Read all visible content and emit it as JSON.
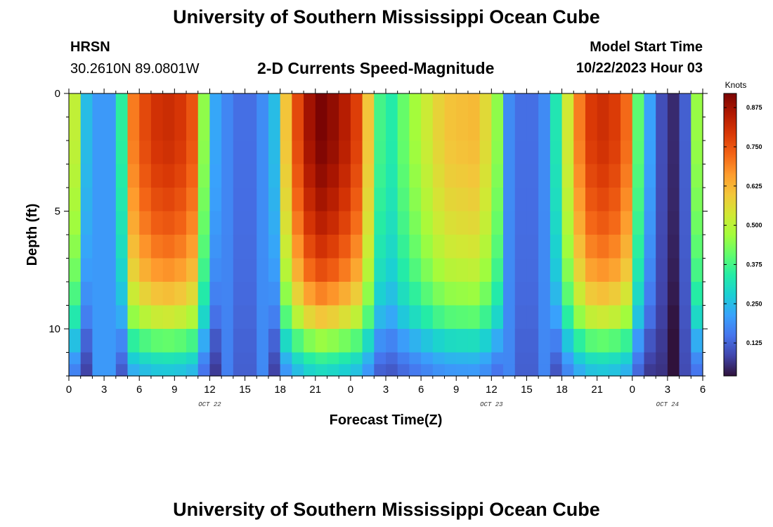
{
  "header": {
    "title": "University of Southern Mississippi Ocean Cube",
    "station": "HRSN",
    "coords": "30.2610N  89.0801W",
    "plot_title": "2-D Currents Speed-Magnitude",
    "model_label": "Model Start Time",
    "model_time": "10/22/2023 Hour 03"
  },
  "footer": {
    "title": "University of Southern Mississippi Ocean Cube"
  },
  "chart_data": {
    "type": "heatmap",
    "title": "2-D Currents Speed-Magnitude",
    "xlabel": "Forecast Time(Z)",
    "ylabel": "Depth (ft)",
    "x_hours": {
      "start": 0,
      "end": 54,
      "step": 3
    },
    "x_tick_labels": [
      "0",
      "3",
      "6",
      "9",
      "12",
      "15",
      "18",
      "21",
      "0",
      "3",
      "6",
      "9",
      "12",
      "15",
      "18",
      "21",
      "0",
      "3",
      "6"
    ],
    "date_labels": [
      {
        "text": "OCT 22",
        "hour": 12
      },
      {
        "text": "OCT 23",
        "hour": 36
      },
      {
        "text": "OCT 24",
        "hour": 51
      }
    ],
    "ylim": [
      0,
      12
    ],
    "y_reversed": true,
    "y_ticks": [
      0,
      5,
      10
    ],
    "y_tick_labels": [
      "0",
      "5",
      "10"
    ],
    "depth_levels_ft": [
      0,
      1,
      2,
      3,
      4,
      5,
      6,
      7,
      8,
      9,
      10,
      11,
      11.5,
      12
    ],
    "colorbar": {
      "units": "Knots",
      "min": 0.02,
      "max": 0.92,
      "ticks": [
        0.125,
        0.25,
        0.375,
        0.5,
        0.625,
        0.75,
        0.875
      ],
      "tick_labels": [
        "0.125",
        "0.250",
        "0.375",
        "0.500",
        "0.625",
        "0.750",
        "0.875"
      ],
      "colormap": [
        "#30123b",
        "#4145ab",
        "#4675ed",
        "#39a2fc",
        "#1bcfd4",
        "#24eca6",
        "#61fc6c",
        "#a4fc3b",
        "#d1e834",
        "#f3c63a",
        "#fe9b2d",
        "#f36315",
        "#d93806",
        "#b11901",
        "#7a0403"
      ]
    },
    "surface_speed_knots": [
      {
        "hour": 0,
        "v": 0.62
      },
      {
        "hour": 1,
        "v": 0.4
      },
      {
        "hour": 1.5,
        "v": 0.25
      },
      {
        "hour": 2,
        "v": 0.2
      },
      {
        "hour": 3.5,
        "v": 0.2
      },
      {
        "hour": 4.5,
        "v": 0.35
      },
      {
        "hour": 5.5,
        "v": 0.7
      },
      {
        "hour": 7,
        "v": 0.8
      },
      {
        "hour": 9,
        "v": 0.82
      },
      {
        "hour": 10.5,
        "v": 0.75
      },
      {
        "hour": 11.5,
        "v": 0.45
      },
      {
        "hour": 12.5,
        "v": 0.22
      },
      {
        "hour": 14,
        "v": 0.15
      },
      {
        "hour": 15,
        "v": 0.13
      },
      {
        "hour": 16,
        "v": 0.15
      },
      {
        "hour": 17.5,
        "v": 0.25
      },
      {
        "hour": 18.5,
        "v": 0.6
      },
      {
        "hour": 20,
        "v": 0.85
      },
      {
        "hour": 21.5,
        "v": 0.92
      },
      {
        "hour": 23,
        "v": 0.88
      },
      {
        "hour": 25,
        "v": 0.75
      },
      {
        "hour": 26,
        "v": 0.45
      },
      {
        "hour": 27,
        "v": 0.3
      },
      {
        "hour": 28,
        "v": 0.38
      },
      {
        "hour": 30,
        "v": 0.5
      },
      {
        "hour": 32,
        "v": 0.6
      },
      {
        "hour": 35,
        "v": 0.62
      },
      {
        "hour": 36.5,
        "v": 0.45
      },
      {
        "hour": 37.5,
        "v": 0.18
      },
      {
        "hour": 39,
        "v": 0.12
      },
      {
        "hour": 41,
        "v": 0.2
      },
      {
        "hour": 42,
        "v": 0.45
      },
      {
        "hour": 44,
        "v": 0.78
      },
      {
        "hour": 46,
        "v": 0.82
      },
      {
        "hour": 47.5,
        "v": 0.72
      },
      {
        "hour": 48.5,
        "v": 0.4
      },
      {
        "hour": 50,
        "v": 0.12
      },
      {
        "hour": 51.5,
        "v": 0.05
      },
      {
        "hour": 52.5,
        "v": 0.12
      },
      {
        "hour": 53.3,
        "v": 0.4
      },
      {
        "hour": 54,
        "v": 0.6
      }
    ],
    "depth_profile_factor": [
      {
        "depth_ft": 0,
        "f": 1.0
      },
      {
        "depth_ft": 2,
        "f": 1.0
      },
      {
        "depth_ft": 4,
        "f": 0.96
      },
      {
        "depth_ft": 6,
        "f": 0.9
      },
      {
        "depth_ft": 8,
        "f": 0.8
      },
      {
        "depth_ft": 9.5,
        "f": 0.65
      },
      {
        "depth_ft": 10.5,
        "f": 0.5
      },
      {
        "depth_ft": 11.5,
        "f": 0.36
      },
      {
        "depth_ft": 12,
        "f": 0.3
      }
    ],
    "depth_factor_floor_knots": 0.2
  }
}
